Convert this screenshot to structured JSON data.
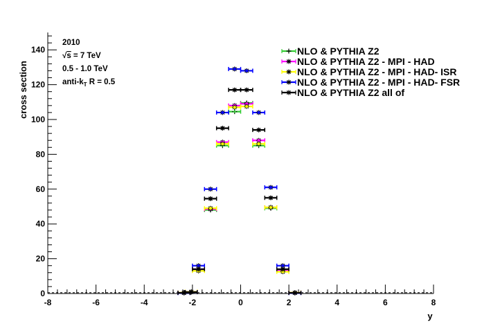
{
  "chart_data": {
    "type": "scatter",
    "title": "",
    "xlabel": "y",
    "ylabel": "cross section",
    "xlim": [
      -8,
      8
    ],
    "ylim": [
      0,
      150
    ],
    "x_ticks": [
      "-8",
      "-6",
      "-4",
      "-2",
      "0",
      "2",
      "4",
      "6",
      "8"
    ],
    "y_ticks": [
      "0",
      "20",
      "40",
      "60",
      "80",
      "100",
      "120",
      "140"
    ],
    "x_tick_values": [
      -8,
      -6,
      -4,
      -2,
      0,
      2,
      4,
      6,
      8
    ],
    "y_tick_values": [
      0,
      20,
      40,
      60,
      80,
      100,
      120,
      140
    ],
    "info_lines": {
      "year": "2010",
      "energy_prefix": "s",
      "energy_suffix": " = 7 TeV",
      "pt_range": "0.5 - 1.0 TeV",
      "algo_prefix": "anti-k",
      "algo_sub": "T",
      "algo_suffix": " R = 0.5"
    },
    "grid": false,
    "legend_position": "top-right",
    "series": [
      {
        "name": "NLO & PYTHIA Z2",
        "color": "#33cc33",
        "marker": "plus",
        "x": [
          -2.35,
          -2.05,
          -1.75,
          -1.25,
          -0.75,
          -0.25,
          0.25,
          0.75,
          1.25,
          1.75,
          2.25
        ],
        "y": [
          0.5,
          1.0,
          14.0,
          48.0,
          85.0,
          104.5,
          109.5,
          85.0,
          49.0,
          13.5,
          0.5
        ]
      },
      {
        "name": "NLO & PYTHIA Z2 - MPI - HAD",
        "color": "#ff00ff",
        "marker": "star",
        "x": [
          -2.35,
          -2.05,
          -1.75,
          -1.25,
          -0.75,
          -0.25,
          0.25,
          0.75,
          1.25,
          1.75,
          2.25
        ],
        "y": [
          0.5,
          1.0,
          14.0,
          48.5,
          87.0,
          108.0,
          109.0,
          88.0,
          49.5,
          13.5,
          0.5
        ]
      },
      {
        "name": "NLO & PYTHIA Z2 - MPI - HAD- ISR",
        "color": "#ffff00",
        "marker": "star",
        "x": [
          -2.35,
          -2.05,
          -1.75,
          -1.25,
          -0.75,
          -0.25,
          0.25,
          0.75,
          1.25,
          1.75,
          2.25
        ],
        "y": [
          0.5,
          1.0,
          13.0,
          49.0,
          86.0,
          107.0,
          107.5,
          86.0,
          49.5,
          12.5,
          0.5
        ]
      },
      {
        "name": "NLO & PYTHIA Z2 - MPI - HAD- FSR",
        "color": "#0000ff",
        "marker": "star",
        "x": [
          -2.35,
          -2.05,
          -1.75,
          -1.25,
          -0.75,
          -0.25,
          0.25,
          0.75,
          1.25,
          1.75,
          2.25
        ],
        "y": [
          0.3,
          0.8,
          16.0,
          60.0,
          104.0,
          129.0,
          128.0,
          104.0,
          61.0,
          16.0,
          0.3
        ]
      },
      {
        "name": "NLO & PYTHIA Z2 all of",
        "color": "#000000",
        "marker": "star",
        "x": [
          -2.35,
          -2.05,
          -1.75,
          -1.25,
          -0.75,
          -0.25,
          0.25,
          0.75,
          1.25,
          1.75,
          2.25
        ],
        "y": [
          0.4,
          0.8,
          14.0,
          54.5,
          95.0,
          117.0,
          117.0,
          94.0,
          55.0,
          14.0,
          0.4
        ]
      }
    ]
  }
}
